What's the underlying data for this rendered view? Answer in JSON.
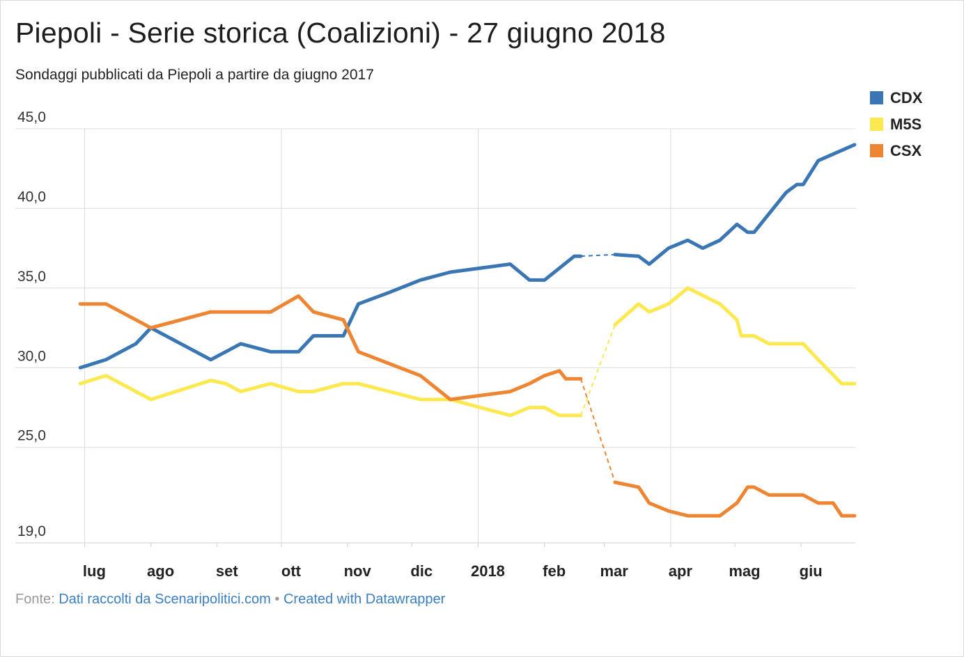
{
  "title": "Piepoli - Serie storica (Coalizioni) - 27 giugno 2018",
  "subtitle": "Sondaggi pubblicati da Piepoli a partire da giugno 2017",
  "footer": {
    "prefix": "Fonte:",
    "source": "Dati raccolti da Scenaripolitici.com",
    "separator": "•",
    "credit": "Created with Datawrapper"
  },
  "colors": {
    "CDX": "#3a76b3",
    "M5S": "#fbe94f",
    "CSX": "#ed8532",
    "grid": "#dcdcdc"
  },
  "chart_data": {
    "type": "line",
    "ylim": [
      19,
      45
    ],
    "y_ticks": [
      "45,0",
      "40,0",
      "35,0",
      "30,0",
      "25,0",
      "19,0"
    ],
    "y_tick_values": [
      45,
      40,
      35,
      30,
      25,
      19
    ],
    "x_tick_labels": [
      "lug",
      "ago",
      "set",
      "ott",
      "nov",
      "dic",
      "2018",
      "feb",
      "mar",
      "apr",
      "mag",
      "giu"
    ],
    "x_tick_dates": [
      "2017-07-01",
      "2017-08-01",
      "2017-09-01",
      "2017-10-01",
      "2017-11-01",
      "2017-12-01",
      "2018-01-01",
      "2018-02-01",
      "2018-03-01",
      "2018-04-01",
      "2018-05-01",
      "2018-06-01"
    ],
    "vertical_gridlines_at": [
      "2017-07-01",
      "2017-10-01",
      "2018-01-01",
      "2018-04-01"
    ],
    "x_range": [
      "2017-06-25",
      "2018-06-27"
    ],
    "legend": {
      "position": "top-right",
      "entries": [
        "CDX",
        "M5S",
        "CSX"
      ]
    },
    "gap": {
      "from": "2018-02-18",
      "to": "2018-03-06",
      "style": "dashed"
    },
    "series": [
      {
        "name": "CDX",
        "points": [
          [
            "2017-06-29",
            30.0
          ],
          [
            "2017-07-11",
            30.5
          ],
          [
            "2017-07-25",
            31.5
          ],
          [
            "2017-08-01",
            32.5
          ],
          [
            "2017-08-29",
            30.5
          ],
          [
            "2017-09-05",
            31.0
          ],
          [
            "2017-09-12",
            31.5
          ],
          [
            "2017-09-26",
            31.0
          ],
          [
            "2017-10-09",
            31.0
          ],
          [
            "2017-10-16",
            32.0
          ],
          [
            "2017-10-30",
            32.0
          ],
          [
            "2017-11-06",
            34.0
          ],
          [
            "2017-11-20",
            34.7
          ],
          [
            "2017-12-05",
            35.5
          ],
          [
            "2017-12-19",
            36.0
          ],
          [
            "2018-01-16",
            36.5
          ],
          [
            "2018-01-25",
            35.5
          ],
          [
            "2018-02-01",
            35.5
          ],
          [
            "2018-02-15",
            37.0
          ],
          [
            "2018-02-18",
            37.0
          ],
          [
            "2018-03-06",
            37.1
          ],
          [
            "2018-03-17",
            37.0
          ],
          [
            "2018-03-22",
            36.5
          ],
          [
            "2018-03-31",
            37.5
          ],
          [
            "2018-04-09",
            38.0
          ],
          [
            "2018-04-16",
            37.5
          ],
          [
            "2018-04-24",
            38.0
          ],
          [
            "2018-05-02",
            39.0
          ],
          [
            "2018-05-07",
            38.5
          ],
          [
            "2018-05-10",
            38.5
          ],
          [
            "2018-05-25",
            41.0
          ],
          [
            "2018-05-30",
            41.5
          ],
          [
            "2018-06-02",
            41.5
          ],
          [
            "2018-06-09",
            43.0
          ],
          [
            "2018-06-26",
            44.0
          ]
        ]
      },
      {
        "name": "M5S",
        "points": [
          [
            "2017-06-29",
            29.0
          ],
          [
            "2017-07-11",
            29.5
          ],
          [
            "2017-08-01",
            28.0
          ],
          [
            "2017-08-29",
            29.2
          ],
          [
            "2017-09-05",
            29.0
          ],
          [
            "2017-09-12",
            28.5
          ],
          [
            "2017-09-26",
            29.0
          ],
          [
            "2017-10-09",
            28.5
          ],
          [
            "2017-10-16",
            28.5
          ],
          [
            "2017-10-30",
            29.0
          ],
          [
            "2017-11-06",
            29.0
          ],
          [
            "2017-12-05",
            28.0
          ],
          [
            "2017-12-19",
            28.0
          ],
          [
            "2018-01-16",
            27.0
          ],
          [
            "2018-01-25",
            27.5
          ],
          [
            "2018-02-01",
            27.5
          ],
          [
            "2018-02-08",
            27.0
          ],
          [
            "2018-02-15",
            27.0
          ],
          [
            "2018-02-18",
            27.0
          ],
          [
            "2018-03-06",
            32.7
          ],
          [
            "2018-03-17",
            34.0
          ],
          [
            "2018-03-22",
            33.5
          ],
          [
            "2018-03-31",
            34.0
          ],
          [
            "2018-04-09",
            35.0
          ],
          [
            "2018-04-24",
            34.0
          ],
          [
            "2018-05-02",
            33.0
          ],
          [
            "2018-05-04",
            32.0
          ],
          [
            "2018-05-10",
            32.0
          ],
          [
            "2018-05-17",
            31.5
          ],
          [
            "2018-06-02",
            31.5
          ],
          [
            "2018-06-09",
            30.5
          ],
          [
            "2018-06-20",
            29.0
          ],
          [
            "2018-06-26",
            29.0
          ]
        ]
      },
      {
        "name": "CSX",
        "points": [
          [
            "2017-06-29",
            34.0
          ],
          [
            "2017-07-11",
            34.0
          ],
          [
            "2017-07-25",
            33.0
          ],
          [
            "2017-08-01",
            32.5
          ],
          [
            "2017-08-29",
            33.5
          ],
          [
            "2017-09-26",
            33.5
          ],
          [
            "2017-10-09",
            34.5
          ],
          [
            "2017-10-16",
            33.5
          ],
          [
            "2017-10-30",
            33.0
          ],
          [
            "2017-11-06",
            31.0
          ],
          [
            "2017-12-05",
            29.5
          ],
          [
            "2017-12-19",
            28.0
          ],
          [
            "2018-01-16",
            28.5
          ],
          [
            "2018-01-25",
            29.0
          ],
          [
            "2018-02-01",
            29.5
          ],
          [
            "2018-02-08",
            29.8
          ],
          [
            "2018-02-11",
            29.3
          ],
          [
            "2018-02-15",
            29.3
          ],
          [
            "2018-02-18",
            29.3
          ],
          [
            "2018-03-06",
            22.8
          ],
          [
            "2018-03-17",
            22.5
          ],
          [
            "2018-03-22",
            21.5
          ],
          [
            "2018-03-31",
            21.0
          ],
          [
            "2018-04-09",
            20.7
          ],
          [
            "2018-04-24",
            20.7
          ],
          [
            "2018-05-02",
            21.5
          ],
          [
            "2018-05-07",
            22.5
          ],
          [
            "2018-05-10",
            22.5
          ],
          [
            "2018-05-17",
            22.0
          ],
          [
            "2018-06-02",
            22.0
          ],
          [
            "2018-06-09",
            21.5
          ],
          [
            "2018-06-16",
            21.5
          ],
          [
            "2018-06-20",
            20.7
          ],
          [
            "2018-06-26",
            20.7
          ]
        ]
      }
    ]
  }
}
